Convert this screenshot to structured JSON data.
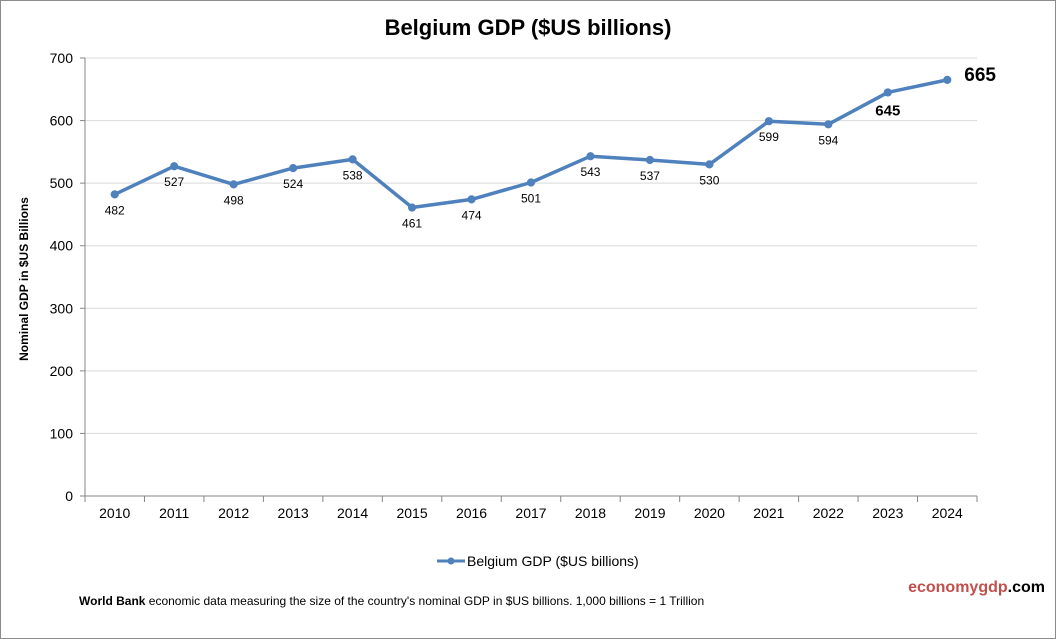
{
  "chart_data": {
    "type": "line",
    "title": "Belgium GDP ($US billions)",
    "ylabel": "Nominal GDP in $US Billions",
    "xlabel": "",
    "ylim": [
      0,
      700
    ],
    "yticks": [
      0,
      100,
      200,
      300,
      400,
      500,
      600,
      700
    ],
    "x": [
      "2010",
      "2011",
      "2012",
      "2013",
      "2014",
      "2015",
      "2016",
      "2017",
      "2018",
      "2019",
      "2020",
      "2021",
      "2022",
      "2023",
      "2024"
    ],
    "series": [
      {
        "name": "Belgium GDP ($US billions)",
        "values": [
          482,
          527,
          498,
          524,
          538,
          461,
          474,
          501,
          543,
          537,
          530,
          599,
          594,
          645,
          665
        ],
        "labels": [
          "482",
          "527",
          "498",
          "524",
          "538",
          "461",
          "474",
          "501",
          "543",
          "537",
          "530",
          "599",
          "594",
          "645",
          "665"
        ],
        "color": "#4f81bd"
      }
    ],
    "grid": true,
    "legend_position": "bottom"
  },
  "footnote": {
    "bold": "World Bank",
    "text": " economic data  measuring the size of the country's nominal GDP in $US billions. 1,000 billions = 1 Trillion"
  },
  "brand": {
    "part1": "economy",
    "part2": "gdp",
    "part3": ".com",
    "color1": "#c0504d",
    "color3": "#000000"
  },
  "colors": {
    "grid": "#d9d9d9",
    "axis": "#868686"
  }
}
